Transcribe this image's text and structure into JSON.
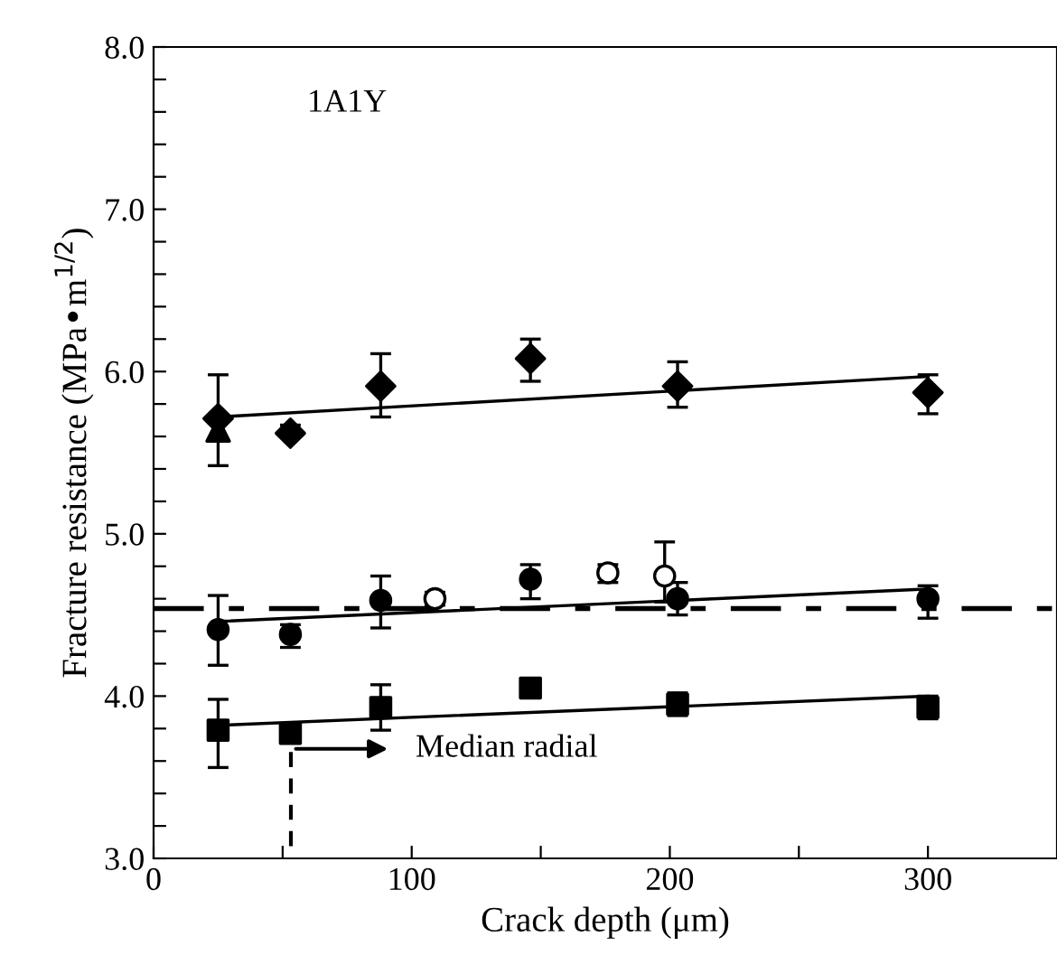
{
  "chart_data": {
    "type": "scatter",
    "xlabel": "Crack depth (μm)",
    "ylabel": "Fracture resistance (MPa•m$^{1/2}$)",
    "xlim": [
      0,
      350
    ],
    "ylim": [
      3.0,
      8.0
    ],
    "xticks": [
      0,
      {
        "value": 50,
        "label": null
      },
      100,
      {
        "value": 150,
        "label": null
      },
      200,
      {
        "value": 250,
        "label": null
      },
      300
    ],
    "yticks": [
      {
        "value": 3.0,
        "label": "3.0"
      },
      {
        "value": 3.2,
        "label": null
      },
      {
        "value": 3.4,
        "label": null
      },
      {
        "value": 3.6,
        "label": null
      },
      {
        "value": 3.8,
        "label": null
      },
      {
        "value": 4.0,
        "label": "4.0"
      },
      {
        "value": 4.2,
        "label": null
      },
      {
        "value": 4.4,
        "label": null
      },
      {
        "value": 4.6,
        "label": null
      },
      {
        "value": 4.8,
        "label": null
      },
      {
        "value": 5.0,
        "label": "5.0"
      },
      {
        "value": 5.2,
        "label": null
      },
      {
        "value": 5.4,
        "label": null
      },
      {
        "value": 5.6,
        "label": null
      },
      {
        "value": 5.8,
        "label": null
      },
      {
        "value": 6.0,
        "label": "6.0"
      },
      {
        "value": 6.2,
        "label": null
      },
      {
        "value": 6.4,
        "label": null
      },
      {
        "value": 6.6,
        "label": null
      },
      {
        "value": 6.8,
        "label": null
      },
      {
        "value": 7.0,
        "label": "7.0"
      },
      {
        "value": 7.2,
        "label": null
      },
      {
        "value": 7.4,
        "label": null
      },
      {
        "value": 7.6,
        "label": null
      },
      {
        "value": 7.8,
        "label": null
      },
      {
        "value": 8.0,
        "label": "8.0"
      }
    ],
    "grid": false,
    "series": [
      {
        "marker": "triangle",
        "color": "#000000",
        "x": [
          25
        ],
        "values": [
          5.64
        ]
      },
      {
        "marker": "diamond",
        "color": "#000000",
        "x": [
          25,
          53,
          88,
          146,
          203,
          300
        ],
        "values": [
          5.71,
          5.62,
          5.91,
          6.08,
          5.91,
          5.87
        ],
        "errors": [
          [
            5.42,
            5.98
          ],
          [
            5.62,
            5.67
          ],
          [
            5.72,
            6.11
          ],
          [
            5.94,
            6.2
          ],
          [
            5.78,
            6.06
          ],
          [
            5.74,
            5.98
          ]
        ]
      },
      {
        "marker": "circle",
        "color": "#000000",
        "x": [
          25,
          53,
          88,
          146,
          203,
          300
        ],
        "values": [
          4.41,
          4.38,
          4.59,
          4.72,
          4.6,
          4.6
        ],
        "errors": [
          [
            4.19,
            4.62
          ],
          [
            4.3,
            4.44
          ],
          [
            4.42,
            4.74
          ],
          [
            4.6,
            4.81
          ],
          [
            4.5,
            4.7
          ],
          [
            4.48,
            4.68
          ]
        ]
      },
      {
        "marker": "circle",
        "color": "#ffffff",
        "x": [
          109,
          176,
          198
        ],
        "values": [
          4.6,
          4.76,
          4.74
        ],
        "errors": [
          [
            4.56,
            4.64
          ],
          [
            4.7,
            4.81
          ],
          [
            4.58,
            4.95
          ]
        ]
      },
      {
        "marker": "square",
        "color": "#000000",
        "x": [
          25,
          53,
          88,
          146,
          203,
          300
        ],
        "values": [
          3.79,
          3.77,
          3.93,
          4.05,
          3.95,
          3.93
        ],
        "errors": [
          [
            3.56,
            3.98
          ],
          [
            3.72,
            3.82
          ],
          [
            3.79,
            4.07
          ],
          [
            4.0,
            4.1
          ],
          [
            3.88,
            4.02
          ],
          [
            3.86,
            4.0
          ]
        ]
      },
      {
        "type": "line",
        "marker": "none",
        "color": "#000000",
        "x": [
          25,
          300
        ],
        "values": [
          5.72,
          5.97
        ]
      },
      {
        "type": "line",
        "marker": "none",
        "color": "#000000",
        "x": [
          25,
          300
        ],
        "values": [
          4.46,
          4.66
        ]
      },
      {
        "type": "line",
        "marker": "none",
        "color": "#000000",
        "x": [
          25,
          300
        ],
        "values": [
          3.82,
          4.0
        ]
      }
    ],
    "ref_lines": [
      {
        "axis": "y",
        "value": 4.54,
        "line_style": "dashed",
        "color": "#000000"
      }
    ],
    "annotations": [
      "1A1Y",
      "Median radial"
    ],
    "legend": false
  }
}
